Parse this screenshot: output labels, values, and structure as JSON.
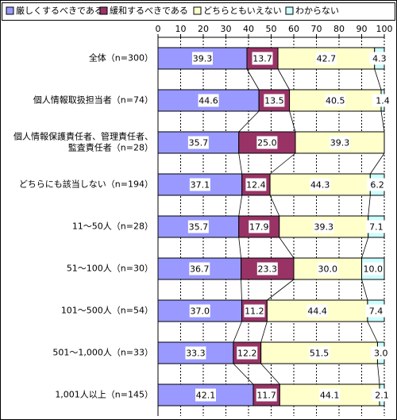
{
  "chart_data": {
    "type": "stacked-bar-horizontal",
    "categories": [
      "全体（n=300）",
      "個人情報取扱担当者（n=74）",
      "個人情報保護責任者、管理責任者、\n監査責任者（n=28）",
      "どちらにも該当しない（n=194）",
      "11～50人（n=28）",
      "51～100人（n=30）",
      "101～500人（n=54）",
      "501～1,000人（n=33）",
      "1,001人以上（n=145）"
    ],
    "series": [
      {
        "name": "厳しくするべきである",
        "color": "#9999ff",
        "values": [
          39.3,
          44.6,
          35.7,
          37.1,
          35.7,
          36.7,
          37.0,
          33.3,
          42.1
        ],
        "value_labels": [
          "39.3",
          "44.6",
          "35.7",
          "37.1",
          "35.7",
          "36.7",
          "37.0",
          "33.3",
          "42.1"
        ]
      },
      {
        "name": "緩和するべきである",
        "color": "#993366",
        "values": [
          13.7,
          13.5,
          25.0,
          12.4,
          17.9,
          23.3,
          11.2,
          12.2,
          11.7
        ],
        "value_labels": [
          "13.7",
          "13.5",
          "25.0",
          "12.4",
          "17.9",
          "23.3",
          "11.2",
          "12.2",
          "11.7"
        ]
      },
      {
        "name": "どちらともいえない",
        "color": "#ffffcc",
        "values": [
          42.7,
          40.5,
          39.3,
          44.3,
          39.3,
          30.0,
          44.4,
          51.5,
          44.1
        ],
        "value_labels": [
          "42.7",
          "40.5",
          "39.3",
          "44.3",
          "39.3",
          "30.0",
          "44.4",
          "51.5",
          "44.1"
        ]
      },
      {
        "name": "わからない",
        "color": "#ccffff",
        "values": [
          4.3,
          1.4,
          null,
          6.2,
          7.1,
          10.0,
          7.4,
          3.0,
          2.1
        ],
        "value_labels": [
          "4.3",
          "1.4",
          null,
          "6.2",
          "7.1",
          "10.0",
          "7.4",
          "3.0",
          "2.1"
        ]
      }
    ],
    "xlim": [
      0,
      100
    ],
    "xticks": [
      0,
      10,
      20,
      30,
      40,
      50,
      60,
      70,
      80,
      90,
      100
    ],
    "grid": true
  }
}
